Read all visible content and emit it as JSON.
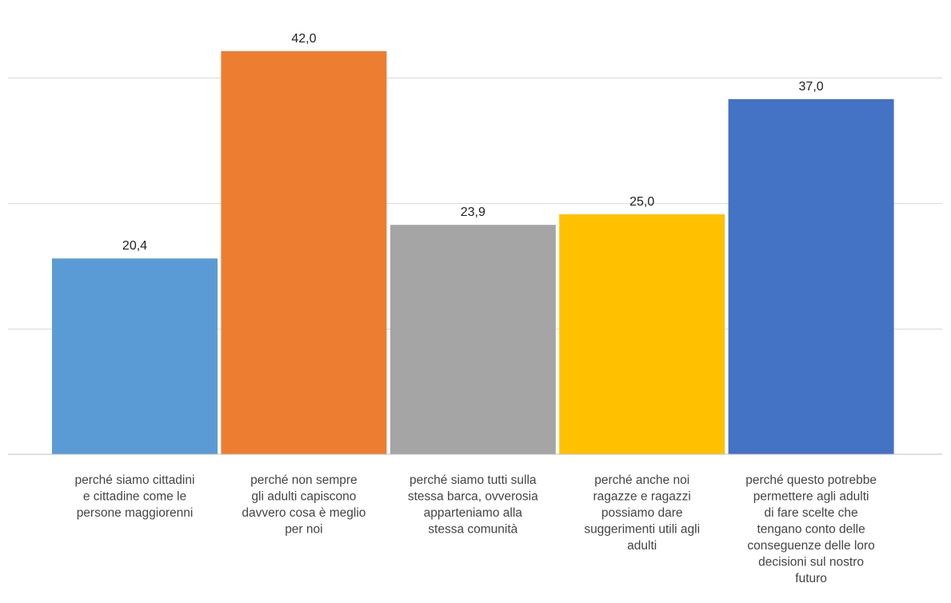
{
  "chart_data": {
    "type": "bar",
    "title": "",
    "xlabel": "",
    "ylabel": "",
    "ylim": [
      0,
      45
    ],
    "grid": true,
    "legend": "none",
    "categories": [
      [
        "perché siamo cittadini",
        "e cittadine come le",
        "persone maggiorenni"
      ],
      [
        "perché non sempre",
        "gli adulti capiscono",
        "davvero cosa è meglio",
        "per noi"
      ],
      [
        "perché siamo tutti sulla",
        "stessa barca, ovverosia",
        "apparteniamo alla",
        "stessa comunità"
      ],
      [
        "perché anche noi",
        "ragazze e ragazzi",
        "possiamo dare",
        "suggerimenti utili agli",
        "adulti"
      ],
      [
        "perché questo potrebbe",
        "permettere agli adulti",
        "di fare scelte che",
        "tengano conto delle",
        "conseguenze delle loro",
        "decisioni sul nostro",
        "futuro"
      ]
    ],
    "values": [
      20.4,
      42.0,
      23.9,
      25.0,
      37.0
    ],
    "value_labels": [
      "20,4",
      "42,0",
      "23,9",
      "25,0",
      "37,0"
    ],
    "colors": [
      "#5B9BD5",
      "#ED7D31",
      "#A5A5A5",
      "#FFC000",
      "#4472C4"
    ]
  }
}
